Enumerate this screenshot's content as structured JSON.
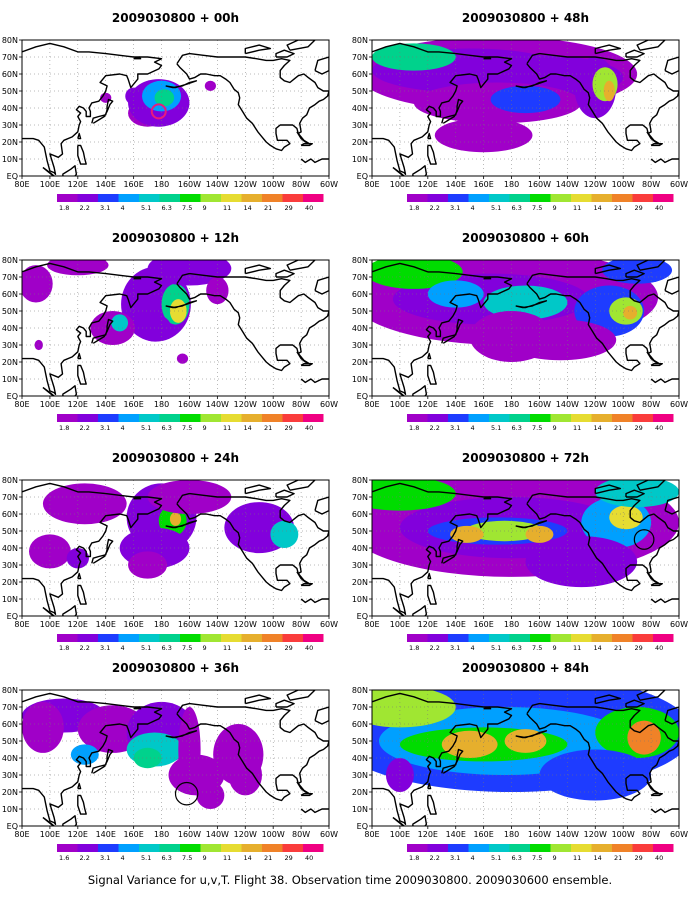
{
  "caption": "Signal Variance for u,v,T. Flight 38. Observation time 2009030800. 2009030600 ensemble.",
  "chart_data": {
    "type": "heatmap",
    "title": "Signal Variance for u,v,T. Flight 38. Observation time 2009030800. 2009030600 ensemble.",
    "x_ticks": [
      "80E",
      "100E",
      "120E",
      "140E",
      "160E",
      "180",
      "160W",
      "140W",
      "120W",
      "100W",
      "80W",
      "60W"
    ],
    "y_ticks": [
      "EQ",
      "10N",
      "20N",
      "30N",
      "40N",
      "50N",
      "60N",
      "70N",
      "80N"
    ],
    "color_levels": [
      "1.8",
      "2.2",
      "3.1",
      "4",
      "5.1",
      "6.3",
      "7.5",
      "9",
      "11",
      "14",
      "21",
      "29",
      "40"
    ],
    "color_levels_36h": [
      "1.6",
      "2.2",
      "3.1",
      "4",
      "5.1",
      "6.3",
      "7.5",
      "9",
      "11",
      "14",
      "21",
      "29",
      "40"
    ],
    "colors": [
      "#a000c8",
      "#8200dc",
      "#1e3cff",
      "#00a0ff",
      "#00c8c8",
      "#00d28c",
      "#00dc00",
      "#a0e632",
      "#e6dc32",
      "#e6af2d",
      "#f08228",
      "#fa3c3c",
      "#f00082"
    ],
    "panels": [
      {
        "id": "00h",
        "title": "2009030800 + 00h",
        "blobs": [
          [
            170,
            37,
            14,
            8,
            0
          ],
          [
            178,
            43,
            22,
            14,
            1
          ],
          [
            180,
            47,
            14,
            9,
            3
          ],
          [
            182,
            46,
            7,
            5,
            5
          ],
          [
            160,
            47,
            6,
            5,
            1
          ],
          [
            140,
            46,
            4,
            3,
            0
          ],
          [
            215,
            53,
            4,
            3,
            0
          ]
        ],
        "circles": [
          [
            178,
            38,
            5,
            "#e81a7c",
            2
          ]
        ]
      },
      {
        "id": "12h",
        "title": "2009030800 + 12h",
        "blobs": [
          [
            90,
            66,
            12,
            11,
            0
          ],
          [
            120,
            77,
            22,
            6,
            0
          ],
          [
            176,
            54,
            25,
            22,
            1
          ],
          [
            190,
            54,
            10,
            12,
            5
          ],
          [
            192,
            50,
            6,
            7,
            8
          ],
          [
            200,
            75,
            30,
            10,
            1
          ],
          [
            220,
            62,
            8,
            8,
            0
          ],
          [
            145,
            40,
            16,
            10,
            0
          ],
          [
            150,
            43,
            6,
            5,
            4
          ],
          [
            175,
            40,
            12,
            8,
            1
          ],
          [
            195,
            22,
            4,
            3,
            0
          ],
          [
            92,
            30,
            3,
            3,
            0
          ]
        ],
        "circles": []
      },
      {
        "id": "24h",
        "title": "2009030800 + 24h",
        "blobs": [
          [
            125,
            66,
            30,
            12,
            0
          ],
          [
            180,
            58,
            25,
            20,
            1
          ],
          [
            188,
            56,
            10,
            9,
            6
          ],
          [
            190,
            57,
            4,
            4,
            9
          ],
          [
            175,
            40,
            25,
            12,
            1
          ],
          [
            170,
            30,
            14,
            8,
            0
          ],
          [
            200,
            70,
            30,
            10,
            0
          ],
          [
            250,
            52,
            25,
            15,
            1
          ],
          [
            268,
            48,
            10,
            8,
            4
          ],
          [
            100,
            38,
            15,
            10,
            0
          ],
          [
            120,
            34,
            8,
            6,
            1
          ]
        ],
        "circles": []
      },
      {
        "id": "36h",
        "title": "2009030800 + 36h",
        "blobs": [
          [
            110,
            65,
            30,
            10,
            1
          ],
          [
            145,
            57,
            25,
            14,
            0
          ],
          [
            180,
            55,
            25,
            18,
            1
          ],
          [
            175,
            45,
            20,
            10,
            4
          ],
          [
            170,
            40,
            10,
            6,
            5
          ],
          [
            200,
            45,
            8,
            25,
            0
          ],
          [
            235,
            42,
            18,
            18,
            0
          ],
          [
            240,
            30,
            12,
            12,
            0
          ],
          [
            205,
            30,
            20,
            12,
            0
          ],
          [
            215,
            18,
            10,
            8,
            0
          ],
          [
            95,
            58,
            15,
            15,
            0
          ],
          [
            125,
            42,
            10,
            6,
            3
          ]
        ],
        "circles": [
          [
            198,
            19,
            8,
            "#000000",
            1.2
          ]
        ]
      },
      {
        "id": "48h",
        "title": "2009030800 + 48h",
        "blobs": [
          [
            170,
            60,
            100,
            22,
            0
          ],
          [
            150,
            62,
            70,
            13,
            1
          ],
          [
            200,
            58,
            60,
            13,
            1
          ],
          [
            110,
            70,
            30,
            8,
            5
          ],
          [
            170,
            43,
            60,
            12,
            0
          ],
          [
            190,
            45,
            25,
            8,
            2
          ],
          [
            240,
            52,
            15,
            18,
            1
          ],
          [
            247,
            54,
            9,
            10,
            7
          ],
          [
            250,
            50,
            4,
            6,
            9
          ],
          [
            160,
            24,
            35,
            10,
            0
          ]
        ],
        "circles": []
      },
      {
        "id": "60h",
        "title": "2009030800 + 60h",
        "blobs": [
          [
            175,
            58,
            110,
            28,
            0
          ],
          [
            165,
            57,
            70,
            15,
            1
          ],
          [
            110,
            73,
            35,
            10,
            6
          ],
          [
            140,
            60,
            20,
            8,
            3
          ],
          [
            190,
            55,
            30,
            10,
            4
          ],
          [
            250,
            50,
            25,
            15,
            2
          ],
          [
            262,
            50,
            12,
            8,
            7
          ],
          [
            265,
            49,
            5,
            4,
            9
          ],
          [
            215,
            33,
            40,
            12,
            0
          ],
          [
            180,
            35,
            30,
            15,
            0
          ],
          [
            270,
            74,
            25,
            8,
            2
          ]
        ],
        "circles": []
      },
      {
        "id": "72h",
        "title": "2009030800 + 72h",
        "blobs": [
          [
            180,
            55,
            120,
            32,
            0
          ],
          [
            180,
            52,
            80,
            18,
            1
          ],
          [
            100,
            72,
            40,
            10,
            6
          ],
          [
            170,
            50,
            50,
            8,
            2
          ],
          [
            175,
            50,
            28,
            6,
            7
          ],
          [
            148,
            48,
            12,
            5,
            9
          ],
          [
            200,
            48,
            10,
            5,
            9
          ],
          [
            255,
            55,
            25,
            15,
            3
          ],
          [
            262,
            58,
            12,
            7,
            8
          ],
          [
            230,
            32,
            40,
            15,
            1
          ],
          [
            270,
            73,
            30,
            9,
            4
          ]
        ],
        "circles": [
          [
            275,
            45,
            7,
            "#000000",
            1.2
          ]
        ]
      },
      {
        "id": "84h",
        "title": "2009030800 + 84h",
        "blobs": [
          [
            180,
            55,
            130,
            35,
            2
          ],
          [
            175,
            50,
            90,
            20,
            3
          ],
          [
            100,
            70,
            40,
            12,
            7
          ],
          [
            160,
            48,
            60,
            10,
            6
          ],
          [
            150,
            48,
            20,
            8,
            9
          ],
          [
            190,
            50,
            15,
            7,
            9
          ],
          [
            270,
            55,
            30,
            15,
            6
          ],
          [
            275,
            52,
            12,
            10,
            10
          ],
          [
            240,
            30,
            40,
            15,
            2
          ],
          [
            100,
            30,
            10,
            10,
            1
          ]
        ],
        "circles": []
      }
    ]
  }
}
